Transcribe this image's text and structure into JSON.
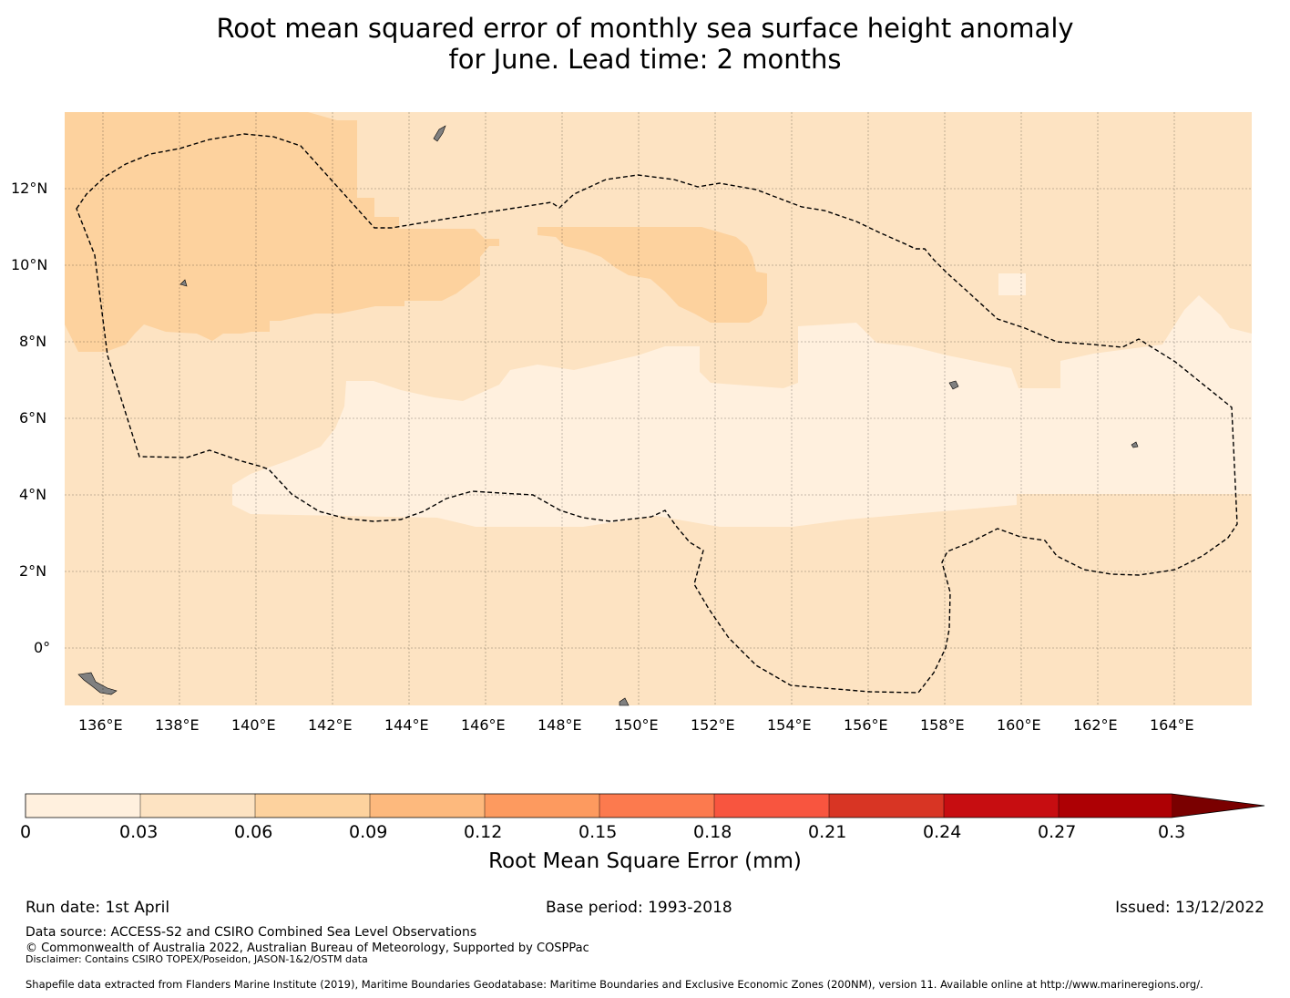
{
  "title_line1": "Root mean squared error of monthly sea surface height anomaly",
  "title_line2": "for June. Lead time: 2 months",
  "map": {
    "lon_labels": [
      "136°E",
      "138°E",
      "140°E",
      "142°E",
      "144°E",
      "146°E",
      "148°E",
      "150°E",
      "152°E",
      "154°E",
      "156°E",
      "158°E",
      "160°E",
      "162°E",
      "164°E"
    ],
    "lat_labels": [
      "12°N",
      "10°N",
      "8°N",
      "6°N",
      "4°N",
      "2°N",
      "0°"
    ],
    "lon_range": [
      135,
      166
    ],
    "lat_range": [
      -1.5,
      14
    ],
    "field_colors": {
      "lt_0.03": "#fff0de",
      "0.03_0.06": "#fde3c2",
      "0.06_0.09": "#fdd29e"
    },
    "land_color": "#808080",
    "eez_boundary": "black-dashed"
  },
  "colorbar": {
    "ticks": [
      "0",
      "0.03",
      "0.06",
      "0.09",
      "0.12",
      "0.15",
      "0.18",
      "0.21",
      "0.24",
      "0.27",
      "0.3"
    ],
    "colors": [
      "#fff0de",
      "#fde3c2",
      "#fdd29e",
      "#fdb97d",
      "#fd9a5f",
      "#fc7a4e",
      "#f8553f",
      "#d83524",
      "#c70d11",
      "#ad0004",
      "#7a0000"
    ],
    "extend": "max",
    "label": "Root Mean Square Error (mm)"
  },
  "footer": {
    "run_date": "Run date: 1st April",
    "base_period": "Base period: 1993-2018",
    "issued": "Issued: 13/12/2022",
    "data_source": "Data source: ACCESS-S2 and CSIRO Combined Sea Level Observations",
    "copyright": "© Commonwealth of Australia 2022, Australian Bureau of Meteorology, Supported by COSPPac",
    "disclaimer": "Disclaimer: Contains CSIRO TOPEX/Poseidon, JASON-1&2/OSTM data",
    "shapefile": "Shapefile data extracted from Flanders Marine Institute (2019), Maritime Boundaries Geodatabase: Maritime Boundaries and Exclusive Economic Zones (200NM), version 11. Available online at http://www.marineregions.org/."
  }
}
